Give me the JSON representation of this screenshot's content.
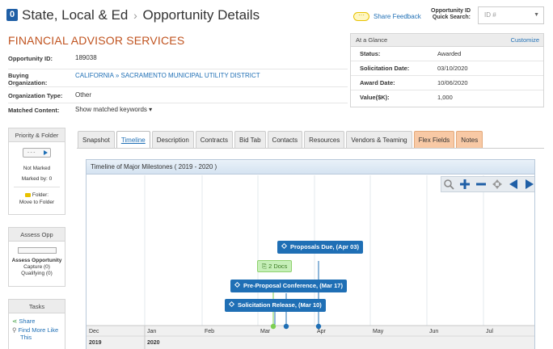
{
  "header": {
    "badge": "0",
    "crumb_root": "State, Local & Ed",
    "crumb_sep": "›",
    "crumb_page": "Opportunity Details",
    "feedback_label": "Share Feedback",
    "quick_search_label_1": "Opportunity ID",
    "quick_search_label_2": "Quick Search:",
    "quick_search_placeholder": "ID #"
  },
  "org": {
    "title": "FINANCIAL ADVISOR SERVICES",
    "fields": [
      {
        "key": "Opportunity ID:",
        "value": "189038"
      },
      {
        "key": "Buying Organization:",
        "value_part1": "CALIFORNIA",
        "value_sep": "»",
        "value_part2": "SACRAMENTO MUNICIPAL UTILITY DISTRICT"
      },
      {
        "key": "Organization Type:",
        "value": "Other"
      },
      {
        "key": "Matched Content:",
        "value": "Show matched keywords ▾"
      }
    ]
  },
  "glance": {
    "title": "At a Glance",
    "customize": "Customize",
    "rows": [
      {
        "key": "Status:",
        "value": "Awarded"
      },
      {
        "key": "Solicitation Date:",
        "value": "03/10/2020"
      },
      {
        "key": "Award Date:",
        "value": "10/06/2020"
      },
      {
        "key": "Value($K):",
        "value": "1,000"
      }
    ]
  },
  "priority": {
    "title": "Priority & Folder",
    "button_label": "- - -",
    "status": "Not Marked",
    "marked_by": "Marked by: 0",
    "folder_label": "Folder:",
    "folder_link": "Move to Folder"
  },
  "assess": {
    "title": "Assess Opp",
    "link": "Assess Opportunity",
    "capture": "Capture (0)",
    "qualifying": "Qualifying (0)"
  },
  "tasks": {
    "title": "Tasks",
    "share": "Share",
    "find_more_1": "Find More Like",
    "find_more_2": "This"
  },
  "tabs": [
    {
      "label": "Snapshot"
    },
    {
      "label": "Timeline"
    },
    {
      "label": "Description"
    },
    {
      "label": "Contracts"
    },
    {
      "label": "Bid Tab"
    },
    {
      "label": "Contacts"
    },
    {
      "label": "Resources"
    },
    {
      "label": "Vendors & Teaming"
    },
    {
      "label": "Flex Fields"
    },
    {
      "label": "Notes"
    }
  ],
  "timeline": {
    "title": "Timeline of Major Milestones ( 2019 - 2020 )",
    "months": [
      "Dec",
      "Jan",
      "Feb",
      "Mar",
      "Apr",
      "May",
      "Jun",
      "Jul"
    ],
    "years": [
      "2019",
      "2020"
    ],
    "events": [
      {
        "label": "Proposals Due, (Apr 03)"
      },
      {
        "label": "2 Docs"
      },
      {
        "label": "Pre-Proposal Conference, (Mar 17)"
      },
      {
        "label": "Solicitation Release, (Mar 10)"
      }
    ],
    "colors": {
      "event": "#1f6fb5",
      "docs": "#c6efb8",
      "docs_dot": "#7ccf52"
    }
  }
}
